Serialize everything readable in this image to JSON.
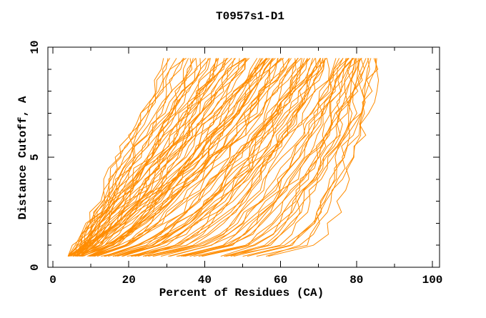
{
  "page": {
    "background": "#ffffff"
  },
  "chart_data": {
    "type": "line",
    "title": "T0957s1-D1",
    "xlabel": "Percent of Residues (CA)",
    "ylabel": "Distance Cutoff, A",
    "xlim": [
      0,
      100
    ],
    "ylim": [
      0,
      10
    ],
    "grid": false,
    "legend": null,
    "axis_color": "#000000",
    "series_color": "#ff8c00",
    "x_major_ticks": [
      0,
      20,
      40,
      60,
      80,
      100
    ],
    "x_tick_labels": [
      "0",
      "20",
      "40",
      "60",
      "80",
      "100"
    ],
    "x_minor_ticks": [
      10,
      30,
      50,
      70,
      90
    ],
    "y_major_ticks": [
      0,
      5,
      10
    ],
    "y_tick_labels": [
      "0",
      "5",
      "10"
    ],
    "y_minor_ticks": [
      1,
      2,
      3,
      4,
      6,
      7,
      8,
      9
    ],
    "series": {
      "kind": "procedural-fan",
      "note": "~110 unlabeled per-model curves; percent of residues vs distance cutoff, cutoffs 0.5..9.5 step 0.5",
      "n_curves": 110,
      "cutoffs": {
        "min": 0.5,
        "max": 9.5,
        "step": 0.5
      },
      "start_percent_range": [
        4.5,
        55
      ],
      "end_percent_range": [
        28,
        85
      ],
      "seed": 9,
      "gen": {
        "s_base": 4.5,
        "s_lin": 3,
        "s_pow_coef": 48,
        "s_pow": 3.5,
        "s_rand": 3,
        "e_base": 28,
        "e_coef": 57,
        "e_pow": 0.75,
        "e_rand": 5,
        "p_base": 0.95,
        "p_slope": -0.6,
        "p_rand": 0.1,
        "wobble_amp": 1.0,
        "wobble_freq": 1.1,
        "jitter": 1.3
      }
    }
  }
}
